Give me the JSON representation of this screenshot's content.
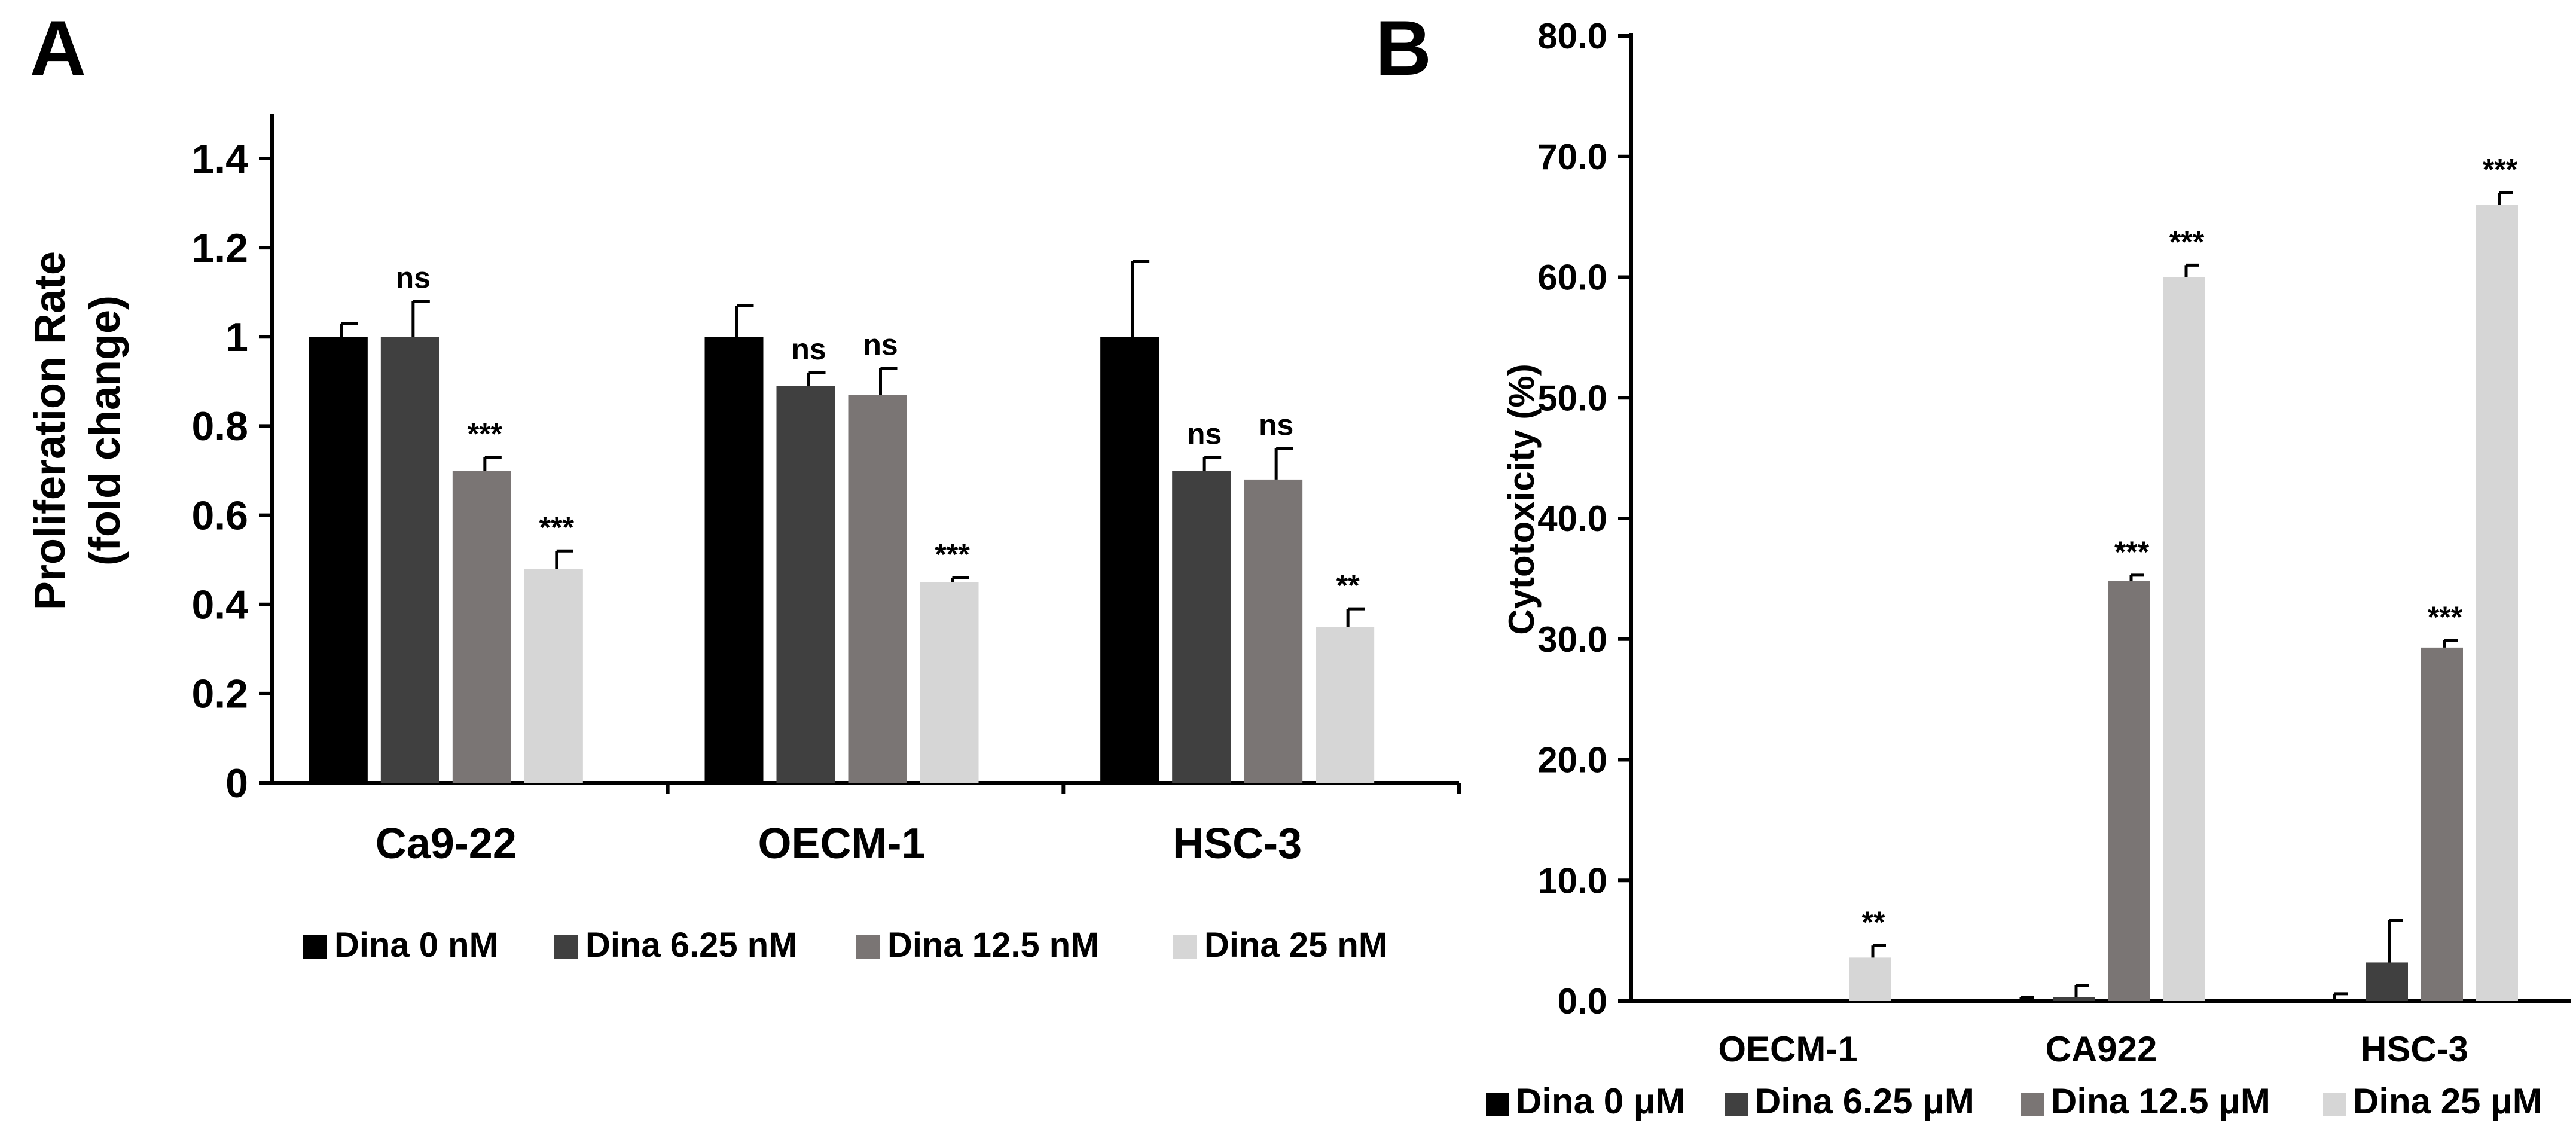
{
  "chart_data": [
    {
      "panel": "A",
      "type": "bar",
      "title": "",
      "xlabel": "",
      "ylabel_line1": "Proliferation Rate",
      "ylabel_line2": "(fold change)",
      "ylim": [
        0,
        1.4
      ],
      "y_ticks": [
        {
          "value": 0,
          "label": "0"
        },
        {
          "value": 0.2,
          "label": "0.2"
        },
        {
          "value": 0.4,
          "label": "0.4"
        },
        {
          "value": 0.6,
          "label": "0.6"
        },
        {
          "value": 0.8,
          "label": "0.8"
        },
        {
          "value": 1.0,
          "label": "1"
        },
        {
          "value": 1.2,
          "label": "1.2"
        },
        {
          "value": 1.4,
          "label": "1.4"
        }
      ],
      "categories": [
        "Ca9-22",
        "OECM-1",
        "HSC-3"
      ],
      "series": [
        {
          "name": "Dina 0 nM",
          "color": "#000000",
          "values": [
            1.0,
            1.0,
            1.0
          ],
          "errors": [
            0.03,
            0.07,
            0.17
          ],
          "significance": [
            "",
            "",
            ""
          ]
        },
        {
          "name": "Dina 6.25 nM",
          "color": "#404040",
          "values": [
            1.0,
            0.89,
            0.7
          ],
          "errors": [
            0.08,
            0.03,
            0.03
          ],
          "significance": [
            "ns",
            "ns",
            "ns"
          ]
        },
        {
          "name": "Dina 12.5 nM",
          "color": "#7a7574",
          "values": [
            0.7,
            0.87,
            0.68
          ],
          "errors": [
            0.03,
            0.06,
            0.07
          ],
          "significance": [
            "***",
            "ns",
            "ns"
          ]
        },
        {
          "name": "Dina 25 nM",
          "color": "#d6d6d6",
          "values": [
            0.48,
            0.45,
            0.35
          ],
          "errors": [
            0.04,
            0.01,
            0.04
          ],
          "significance": [
            "***",
            "***",
            "**"
          ]
        }
      ],
      "legend_position": "bottom",
      "grid": false
    },
    {
      "panel": "B",
      "type": "bar",
      "title": "",
      "xlabel": "",
      "ylabel": "Cytotoxicity (%)",
      "ylim": [
        0,
        80
      ],
      "y_ticks": [
        {
          "value": 0,
          "label": "0.0"
        },
        {
          "value": 10,
          "label": "10.0"
        },
        {
          "value": 20,
          "label": "20.0"
        },
        {
          "value": 30,
          "label": "30.0"
        },
        {
          "value": 40,
          "label": "40.0"
        },
        {
          "value": 50,
          "label": "50.0"
        },
        {
          "value": 60,
          "label": "60.0"
        },
        {
          "value": 70,
          "label": "70.0"
        },
        {
          "value": 80,
          "label": "80.0"
        }
      ],
      "categories": [
        "OECM-1",
        "CA922",
        "HSC-3"
      ],
      "series": [
        {
          "name": "Dina 0 μM",
          "color": "#000000",
          "values": [
            0.0,
            0.0,
            0.0
          ],
          "errors": [
            0.0,
            0.3,
            0.6
          ],
          "significance": [
            "",
            "",
            ""
          ]
        },
        {
          "name": "Dina 6.25 μM",
          "color": "#404040",
          "values": [
            0.0,
            0.3,
            3.2
          ],
          "errors": [
            0.0,
            1.0,
            3.5
          ],
          "significance": [
            "",
            "",
            ""
          ]
        },
        {
          "name": "Dina 12.5 μM",
          "color": "#7a7574",
          "values": [
            0.0,
            34.8,
            29.3
          ],
          "errors": [
            0.0,
            0.5,
            0.6
          ],
          "significance": [
            "",
            "***",
            "***"
          ]
        },
        {
          "name": "Dina 25 μM",
          "color": "#d6d6d6",
          "values": [
            3.6,
            60.0,
            66.0
          ],
          "errors": [
            1.0,
            1.0,
            1.0
          ],
          "significance": [
            "**",
            "***",
            "***"
          ]
        }
      ],
      "legend_position": "bottom",
      "grid": false
    }
  ]
}
